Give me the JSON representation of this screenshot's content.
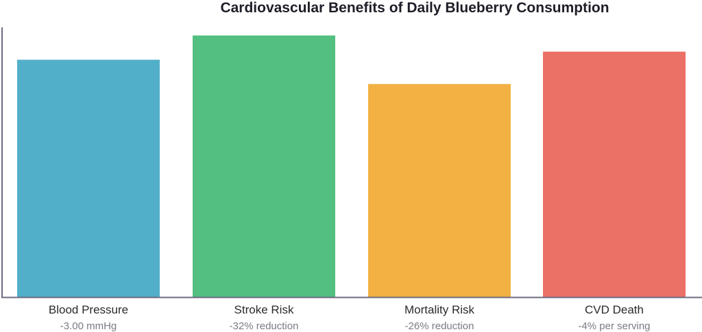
{
  "chart_data": {
    "type": "bar",
    "title": "Cardiovascular Benefits of Daily Blueberry Consumption",
    "xlabel": "",
    "ylabel": "",
    "ylim": [
      0,
      100
    ],
    "grid": false,
    "categories": [
      "Blood Pressure",
      "Stroke Risk",
      "Mortality Risk",
      "CVD Death"
    ],
    "annotations": [
      "-3.00 mmHg",
      "-32% reduction",
      "-26% reduction",
      "-4% per serving"
    ],
    "values": [
      88,
      97,
      79,
      91
    ],
    "colors": [
      "#52afc9",
      "#53bf80",
      "#f2b142",
      "#eb7065"
    ]
  }
}
